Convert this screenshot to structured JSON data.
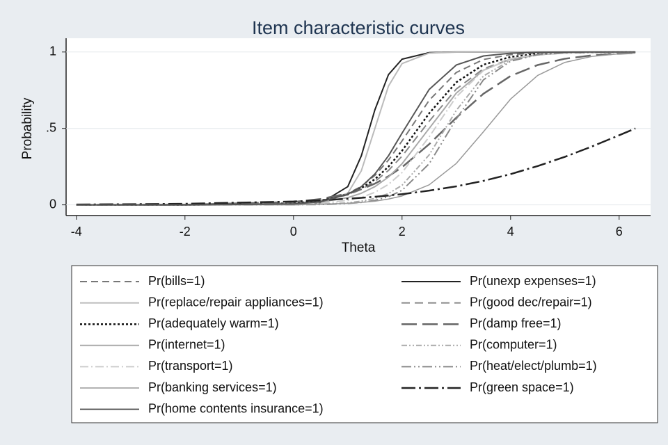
{
  "chart_data": {
    "type": "line",
    "title": "Item characteristic curves",
    "x_label": "Theta",
    "y_label": "Probability",
    "xlim": [
      -4.19,
      6.58
    ],
    "ylim": [
      -0.07,
      1.09
    ],
    "xticks": [
      -4,
      -2,
      0,
      2,
      4,
      6
    ],
    "yticks": [
      0,
      {
        "value": 0.5,
        "label": ".5"
      },
      1
    ],
    "grid": true,
    "legend_position": "bottom",
    "x": [
      -4,
      -2,
      0,
      0.5,
      1,
      1.25,
      1.5,
      1.75,
      2,
      2.5,
      3,
      3.5,
      4,
      4.5,
      5,
      5.5,
      6,
      6.3
    ],
    "series": [
      {
        "name": "Pr(bills=1)",
        "color": "#777777",
        "dash": "10 6",
        "width": 2,
        "values": [
          0,
          0,
          0.009,
          0.026,
          0.074,
          0.121,
          0.193,
          0.293,
          0.418,
          0.684,
          0.866,
          0.951,
          0.983,
          0.994,
          0.998,
          0.999,
          1,
          1
        ]
      },
      {
        "name": "Pr(unexp expenses=1)",
        "color": "#222222",
        "dash": "",
        "width": 2,
        "values": [
          0,
          0,
          0.001,
          0.011,
          0.119,
          0.321,
          0.622,
          0.852,
          0.953,
          0.996,
          1,
          1,
          1,
          1,
          1,
          1,
          1,
          1
        ]
      },
      {
        "name": "Pr(replace/repair appliances=1)",
        "color": "#bbbbbb",
        "dash": "",
        "width": 2,
        "values": [
          0,
          0,
          0.001,
          0.007,
          0.076,
          0.223,
          0.5,
          0.777,
          0.924,
          0.993,
          0.999,
          1,
          1,
          1,
          1,
          1,
          1,
          1
        ]
      },
      {
        "name": "Pr(good dec/repair=1)",
        "color": "#888888",
        "dash": "12 7",
        "width": 2,
        "values": [
          0,
          0,
          0.01,
          0.026,
          0.065,
          0.101,
          0.153,
          0.225,
          0.319,
          0.547,
          0.758,
          0.89,
          0.954,
          0.982,
          0.993,
          0.997,
          0.999,
          0.999
        ]
      },
      {
        "name": "Pr(adequately warm=1)",
        "color": "#111111",
        "dash": "3 3",
        "width": 2.5,
        "values": [
          0,
          0,
          0.01,
          0.027,
          0.069,
          0.109,
          0.168,
          0.25,
          0.354,
          0.599,
          0.802,
          0.917,
          0.968,
          0.988,
          0.995,
          0.998,
          0.999,
          1
        ]
      },
      {
        "name": "Pr(damp free=1)",
        "color": "#666666",
        "dash": "22 8",
        "width": 2.5,
        "values": [
          0,
          0.001,
          0.019,
          0.038,
          0.074,
          0.102,
          0.139,
          0.187,
          0.246,
          0.397,
          0.57,
          0.727,
          0.843,
          0.915,
          0.956,
          0.978,
          0.989,
          0.993
        ]
      },
      {
        "name": "Pr(internet=1)",
        "color": "#aaaaaa",
        "dash": "",
        "width": 2,
        "values": [
          0,
          0,
          0.007,
          0.018,
          0.047,
          0.076,
          0.119,
          0.182,
          0.269,
          0.5,
          0.731,
          0.881,
          0.953,
          0.982,
          0.993,
          0.998,
          0.999,
          0.999
        ]
      },
      {
        "name": "Pr(computer=1)",
        "color": "#aaaaaa",
        "dash": "8 3 2 3 2 3",
        "width": 2,
        "values": [
          0,
          0,
          0.001,
          0.004,
          0.013,
          0.024,
          0.042,
          0.074,
          0.128,
          0.327,
          0.618,
          0.843,
          0.947,
          0.983,
          0.995,
          0.998,
          0.999,
          1
        ]
      },
      {
        "name": "Pr(transport=1)",
        "color": "#cccccc",
        "dash": "12 4 2 4",
        "width": 2,
        "values": [
          0,
          0,
          0.003,
          0.01,
          0.029,
          0.049,
          0.082,
          0.134,
          0.211,
          0.445,
          0.707,
          0.879,
          0.956,
          0.985,
          0.995,
          0.998,
          0.999,
          1
        ]
      },
      {
        "name": "Pr(heat/elect/plumb=1)",
        "color": "#888888",
        "dash": "14 4 2 4 2 4",
        "width": 2,
        "values": [
          0,
          0,
          0.001,
          0.002,
          0.009,
          0.016,
          0.029,
          0.053,
          0.095,
          0.269,
          0.562,
          0.818,
          0.94,
          0.982,
          0.995,
          0.998,
          1,
          1
        ]
      },
      {
        "name": "Pr(banking services=1)",
        "color": "#999999",
        "dash": "",
        "width": 1.5,
        "values": [
          0,
          0,
          0.002,
          0.004,
          0.01,
          0.016,
          0.024,
          0.038,
          0.058,
          0.131,
          0.271,
          0.478,
          0.692,
          0.847,
          0.932,
          0.971,
          0.988,
          0.993
        ]
      },
      {
        "name": "Pr(green space=1)",
        "color": "#222222",
        "dash": "20 5 3 5",
        "width": 2.5,
        "values": [
          0.002,
          0.007,
          0.022,
          0.03,
          0.04,
          0.046,
          0.053,
          0.061,
          0.07,
          0.093,
          0.121,
          0.157,
          0.201,
          0.254,
          0.314,
          0.382,
          0.455,
          0.5
        ]
      },
      {
        "name": "Pr(home contents insurance=1)",
        "color": "#555555",
        "dash": "",
        "width": 2,
        "values": [
          0,
          0,
          0.006,
          0.02,
          0.069,
          0.119,
          0.202,
          0.321,
          0.469,
          0.755,
          0.915,
          0.974,
          0.992,
          0.998,
          0.999,
          1,
          1,
          1
        ]
      }
    ]
  }
}
